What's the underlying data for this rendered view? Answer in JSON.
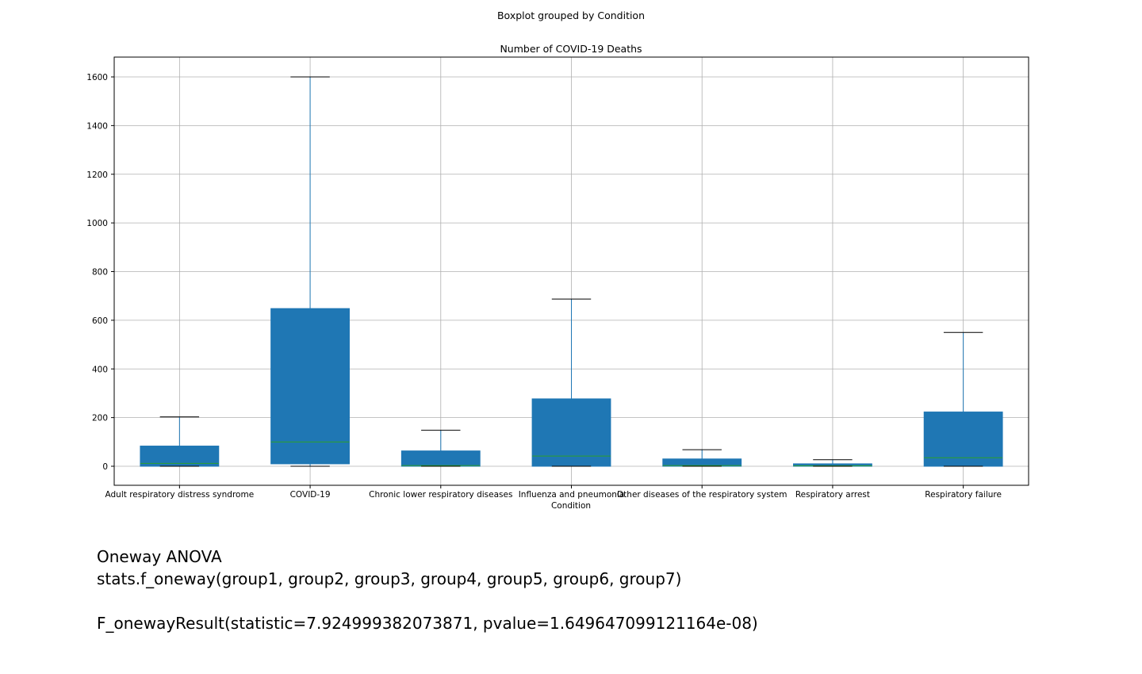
{
  "chart_data": {
    "type": "box",
    "suptitle": "Boxplot grouped by Condition",
    "title": "Number of COVID-19 Deaths",
    "xlabel": "Condition",
    "ylabel": "",
    "ylim": [
      -80,
      1680
    ],
    "yticks": [
      0,
      200,
      400,
      600,
      800,
      1000,
      1200,
      1400,
      1600
    ],
    "grid": true,
    "colors": {
      "box_fill": "#1f77b4",
      "median": "#2ca02c",
      "whisker": "#1f77b4",
      "cap": "#000000",
      "grid": "#b0b0b0",
      "frame": "#000000"
    },
    "categories": [
      "Adult respiratory distress syndrome",
      "COVID-19",
      "Chronic lower respiratory diseases",
      "Influenza and pneumonia",
      "Other diseases of the respiratory system",
      "Respiratory arrest",
      "Respiratory failure"
    ],
    "boxes": [
      {
        "whislo": 0,
        "q1": 0,
        "med": 12,
        "q3": 83,
        "whishi": 203
      },
      {
        "whislo": 0,
        "q1": 10,
        "med": 100,
        "q3": 648,
        "whishi": 1600
      },
      {
        "whislo": 0,
        "q1": 0,
        "med": 3,
        "q3": 63,
        "whishi": 148
      },
      {
        "whislo": 0,
        "q1": 0,
        "med": 42,
        "q3": 277,
        "whishi": 687
      },
      {
        "whislo": 0,
        "q1": 0,
        "med": 3,
        "q3": 30,
        "whishi": 68
      },
      {
        "whislo": 0,
        "q1": 0,
        "med": 2,
        "q3": 10,
        "whishi": 27
      },
      {
        "whislo": 0,
        "q1": 0,
        "med": 35,
        "q3": 223,
        "whishi": 550
      }
    ]
  },
  "anova": {
    "heading": "Oneway ANOVA",
    "code": "stats.f_oneway(group1, group2, group3, group4, group5, group6, group7)",
    "blank": "",
    "result": "F_onewayResult(statistic=7.924999382073871, pvalue=1.649647099121164e-08)"
  }
}
